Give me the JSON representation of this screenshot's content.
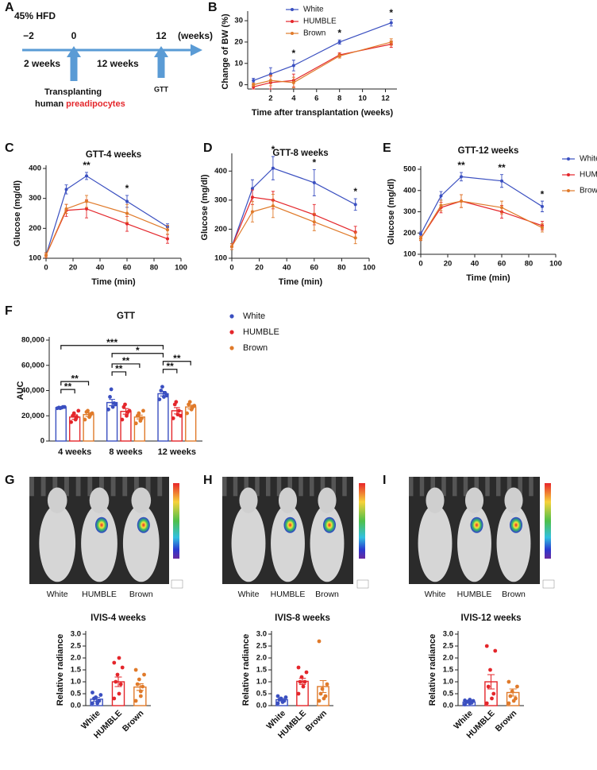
{
  "panel_labels": [
    "A",
    "B",
    "C",
    "D",
    "E",
    "F",
    "G",
    "H",
    "I"
  ],
  "timeline": {
    "title": "45% HFD",
    "ticks": [
      "−2",
      "0",
      "12"
    ],
    "unit": "(weeks)",
    "spans": [
      "2 weeks",
      "12 weeks"
    ],
    "event": "Transplanting",
    "event_line2": "human",
    "event_line2_red": "preadipocytes",
    "end_event": "GTT"
  },
  "images": [
    {
      "labels": [
        "White",
        "HUMBLE",
        "Brown"
      ]
    },
    {
      "labels": [
        "White",
        "HUMBLE",
        "Brown"
      ]
    },
    {
      "labels": [
        "White",
        "HUMBLE",
        "Brown"
      ]
    }
  ],
  "chart_data": [
    {
      "type": "line",
      "xlabel": "Time after transplantation (weeks)",
      "ylabel": "Change of BW (%)",
      "legend": "top",
      "x": [
        0.5,
        2,
        4,
        8,
        12.5
      ],
      "xlim": [
        0,
        13
      ],
      "xticks": [
        2,
        4,
        6,
        8,
        10,
        12
      ],
      "ylim": [
        -2,
        33
      ],
      "yticks": [
        0,
        10,
        20,
        30
      ],
      "series": [
        {
          "name": "White",
          "color": "#3a4fc0",
          "values": [
            2,
            5,
            9,
            20,
            29
          ],
          "errors": [
            1,
            3,
            2.5,
            1,
            1.5
          ]
        },
        {
          "name": "HUMBLE",
          "color": "#e4262b",
          "values": [
            -1,
            1,
            2,
            14,
            19
          ],
          "errors": [
            1,
            3,
            3,
            1,
            1.5
          ]
        },
        {
          "name": "Brown",
          "color": "#e07a2a",
          "values": [
            0,
            2,
            1,
            13.5,
            20
          ],
          "errors": [
            0.8,
            2.5,
            2.5,
            1,
            1.5
          ]
        }
      ],
      "annotations": [
        {
          "x": 4,
          "text": "*"
        },
        {
          "x": 8,
          "text": "*"
        },
        {
          "x": 12.5,
          "text": "*"
        }
      ]
    },
    {
      "type": "line",
      "title": "GTT-4 weeks",
      "xlabel": "Time (min)",
      "ylabel": "Glucose (mg/dl)",
      "x": [
        0,
        15,
        30,
        60,
        90
      ],
      "xlim": [
        0,
        100
      ],
      "xticks": [
        0,
        20,
        40,
        60,
        80,
        100
      ],
      "ylim": [
        100,
        400
      ],
      "yticks": [
        100,
        200,
        300,
        400
      ],
      "series": [
        {
          "color": "#3a4fc0",
          "values": [
            110,
            330,
            375,
            290,
            205
          ],
          "errors": [
            8,
            15,
            12,
            20,
            10
          ]
        },
        {
          "color": "#e4262b",
          "values": [
            110,
            260,
            265,
            215,
            165
          ],
          "errors": [
            8,
            20,
            30,
            25,
            15
          ]
        },
        {
          "color": "#e07a2a",
          "values": [
            110,
            265,
            290,
            250,
            195
          ],
          "errors": [
            8,
            15,
            20,
            30,
            15
          ]
        }
      ],
      "annotations": [
        {
          "x": 30,
          "text": "**"
        },
        {
          "x": 60,
          "text": "*"
        }
      ]
    },
    {
      "type": "line",
      "title": "GTT-8 weeks",
      "xlabel": "Time (min)",
      "ylabel": "Glucose (mg/dl)",
      "x": [
        0,
        15,
        30,
        60,
        90
      ],
      "xlim": [
        0,
        100
      ],
      "xticks": [
        0,
        20,
        40,
        60,
        80,
        100
      ],
      "ylim": [
        100,
        450
      ],
      "yticks": [
        100,
        200,
        300,
        400
      ],
      "series": [
        {
          "color": "#3a4fc0",
          "values": [
            140,
            340,
            410,
            360,
            285
          ],
          "errors": [
            10,
            30,
            40,
            45,
            20
          ]
        },
        {
          "color": "#e4262b",
          "values": [
            140,
            310,
            300,
            250,
            190
          ],
          "errors": [
            10,
            25,
            30,
            35,
            20
          ]
        },
        {
          "color": "#e07a2a",
          "values": [
            140,
            260,
            280,
            225,
            170
          ],
          "errors": [
            10,
            35,
            40,
            30,
            20
          ]
        }
      ],
      "annotations": [
        {
          "x": 30,
          "text": "*"
        },
        {
          "x": 60,
          "text": "*"
        },
        {
          "x": 90,
          "text": "*"
        }
      ]
    },
    {
      "type": "line",
      "title": "GTT-12 weeks",
      "xlabel": "Time (min)",
      "ylabel": "Glucose (mg/dl)",
      "legend": "right",
      "x": [
        0,
        15,
        30,
        60,
        90
      ],
      "xlim": [
        0,
        100
      ],
      "xticks": [
        0,
        20,
        40,
        60,
        80,
        100
      ],
      "ylim": [
        100,
        500
      ],
      "yticks": [
        100,
        200,
        300,
        400,
        500
      ],
      "series": [
        {
          "name": "White",
          "color": "#3a4fc0",
          "values": [
            195,
            375,
            465,
            445,
            325
          ],
          "errors": [
            10,
            20,
            20,
            30,
            25
          ]
        },
        {
          "name": "HUMBLE",
          "color": "#e4262b",
          "values": [
            175,
            320,
            350,
            300,
            235
          ],
          "errors": [
            10,
            25,
            30,
            30,
            20
          ]
        },
        {
          "name": "Brown",
          "color": "#e07a2a",
          "values": [
            175,
            330,
            350,
            320,
            225
          ],
          "errors": [
            10,
            25,
            30,
            30,
            20
          ]
        }
      ],
      "annotations": [
        {
          "x": 30,
          "text": "**"
        },
        {
          "x": 60,
          "text": "**"
        },
        {
          "x": 90,
          "text": "*"
        }
      ]
    },
    {
      "type": "bar",
      "title": "GTT",
      "ylabel": "AUC",
      "legend": "right",
      "categories": [
        "4 weeks",
        "8 weeks",
        "12 weeks"
      ],
      "ylim": [
        0,
        80000
      ],
      "yticks": [
        0,
        {
          "value": 20000,
          "label": "20,000"
        },
        {
          "value": 40000,
          "label": "40,000"
        },
        {
          "value": 60000,
          "label": "60,000"
        },
        {
          "value": 80000,
          "label": "80,000"
        }
      ],
      "series": [
        {
          "name": "White",
          "color": "#3a4fc0",
          "values": [
            26500,
            30500,
            37500
          ],
          "errors": [
            400,
            2500,
            1800
          ],
          "points": [
            [
              26000,
              26500,
              27000,
              26500,
              26000,
              27000
            ],
            [
              25000,
              27000,
              30000,
              35000,
              41000,
              29000
            ],
            [
              33000,
              35000,
              38000,
              40000,
              43000,
              36000
            ]
          ]
        },
        {
          "name": "HUMBLE",
          "color": "#e4262b",
          "values": [
            19000,
            23500,
            24000
          ],
          "errors": [
            1800,
            2200,
            2500
          ],
          "points": [
            [
              15000,
              17000,
              19000,
              20000,
              22000,
              24000
            ],
            [
              17000,
              20000,
              23000,
              27000,
              29000,
              24000
            ],
            [
              18000,
              21000,
              24000,
              29000,
              31000,
              20000
            ]
          ]
        },
        {
          "name": "Brown",
          "color": "#e07a2a",
          "values": [
            21000,
            19000,
            27000
          ],
          "errors": [
            1500,
            1500,
            1500
          ],
          "points": [
            [
              17000,
              19000,
              21000,
              23000,
              24000,
              22000
            ],
            [
              14000,
              16000,
              18000,
              20000,
              22000,
              24000
            ],
            [
              22000,
              25000,
              27000,
              29000,
              31000,
              28000
            ]
          ]
        }
      ],
      "brackets": [
        {
          "from": [
            0,
            0
          ],
          "to": [
            0,
            1
          ],
          "label": "**"
        },
        {
          "from": [
            0,
            0
          ],
          "to": [
            0,
            2
          ],
          "label": "**"
        },
        {
          "from": [
            1,
            0
          ],
          "to": [
            1,
            1
          ],
          "label": "**"
        },
        {
          "from": [
            1,
            0
          ],
          "to": [
            1,
            2
          ],
          "label": "**"
        },
        {
          "from": [
            2,
            0
          ],
          "to": [
            2,
            1
          ],
          "label": "**"
        },
        {
          "from": [
            2,
            0
          ],
          "to": [
            2,
            2
          ],
          "label": "**"
        },
        {
          "from": [
            1,
            0
          ],
          "to": [
            2,
            0
          ],
          "label": "*"
        },
        {
          "from": [
            0,
            0
          ],
          "to": [
            2,
            0
          ],
          "label": "***"
        }
      ]
    },
    {
      "type": "bar",
      "title": "IVIS-4 weeks",
      "ylabel": "Relative radiance",
      "categories": [
        "White",
        "HUMBLE",
        "Brown"
      ],
      "colors": [
        "#3a4fc0",
        "#e4262b",
        "#e07a2a"
      ],
      "values": [
        0.27,
        1.0,
        0.78
      ],
      "errors": [
        0.08,
        0.2,
        0.14
      ],
      "points": [
        [
          0.1,
          0.15,
          0.2,
          0.3,
          0.35,
          0.45,
          0.55,
          0.1
        ],
        [
          0.3,
          0.5,
          0.9,
          1.0,
          1.3,
          1.6,
          1.8,
          2.0
        ],
        [
          0.2,
          0.4,
          0.8,
          0.9,
          1.1,
          1.3,
          1.5,
          0.6
        ]
      ],
      "ylim": [
        0,
        3
      ],
      "yticks": [
        {
          "value": 0,
          "label": "0.0"
        },
        {
          "value": 0.5,
          "label": "0.5"
        },
        {
          "value": 1,
          "label": "1.0"
        },
        {
          "value": 1.5,
          "label": "1.5"
        },
        {
          "value": 2,
          "label": "2.0"
        },
        {
          "value": 2.5,
          "label": "2.5"
        },
        {
          "value": 3,
          "label": "3.0"
        }
      ]
    },
    {
      "type": "bar",
      "title": "IVIS-8 weeks",
      "ylabel": "Relative radiance",
      "categories": [
        "White",
        "HUMBLE",
        "Brown"
      ],
      "colors": [
        "#3a4fc0",
        "#e4262b",
        "#e07a2a"
      ],
      "values": [
        0.25,
        1.02,
        0.8
      ],
      "errors": [
        0.05,
        0.13,
        0.25
      ],
      "points": [
        [
          0.1,
          0.15,
          0.2,
          0.25,
          0.3,
          0.35,
          0.4
        ],
        [
          0.5,
          0.8,
          1.0,
          1.0,
          1.2,
          1.4,
          1.6
        ],
        [
          0.2,
          0.3,
          0.4,
          0.5,
          0.7,
          0.9,
          2.7
        ]
      ],
      "ylim": [
        0,
        3
      ],
      "yticks": [
        {
          "value": 0,
          "label": "0.0"
        },
        {
          "value": 0.5,
          "label": "0.5"
        },
        {
          "value": 1,
          "label": "1.0"
        },
        {
          "value": 1.5,
          "label": "1.5"
        },
        {
          "value": 2,
          "label": "2.0"
        },
        {
          "value": 2.5,
          "label": "2.5"
        },
        {
          "value": 3,
          "label": "3.0"
        }
      ]
    },
    {
      "type": "bar",
      "title": "IVIS-12 weeks",
      "ylabel": "Relative radiance",
      "categories": [
        "White",
        "HUMBLE",
        "Brown"
      ],
      "colors": [
        "#3a4fc0",
        "#e4262b",
        "#e07a2a"
      ],
      "values": [
        0.15,
        1.0,
        0.55
      ],
      "errors": [
        0.03,
        0.3,
        0.15
      ],
      "points": [
        [
          0.05,
          0.1,
          0.12,
          0.15,
          0.18,
          0.2,
          0.22,
          0.25
        ],
        [
          0.1,
          0.3,
          0.5,
          0.8,
          1.5,
          2.3,
          2.5
        ],
        [
          0.1,
          0.2,
          0.3,
          0.4,
          0.6,
          0.8,
          1.0
        ]
      ],
      "ylim": [
        0,
        3
      ],
      "yticks": [
        {
          "value": 0,
          "label": "0.0"
        },
        {
          "value": 0.5,
          "label": "0.5"
        },
        {
          "value": 1,
          "label": "1.0"
        },
        {
          "value": 1.5,
          "label": "1.5"
        },
        {
          "value": 2,
          "label": "2.0"
        },
        {
          "value": 2.5,
          "label": "2.5"
        },
        {
          "value": 3,
          "label": "3.0"
        }
      ]
    }
  ]
}
